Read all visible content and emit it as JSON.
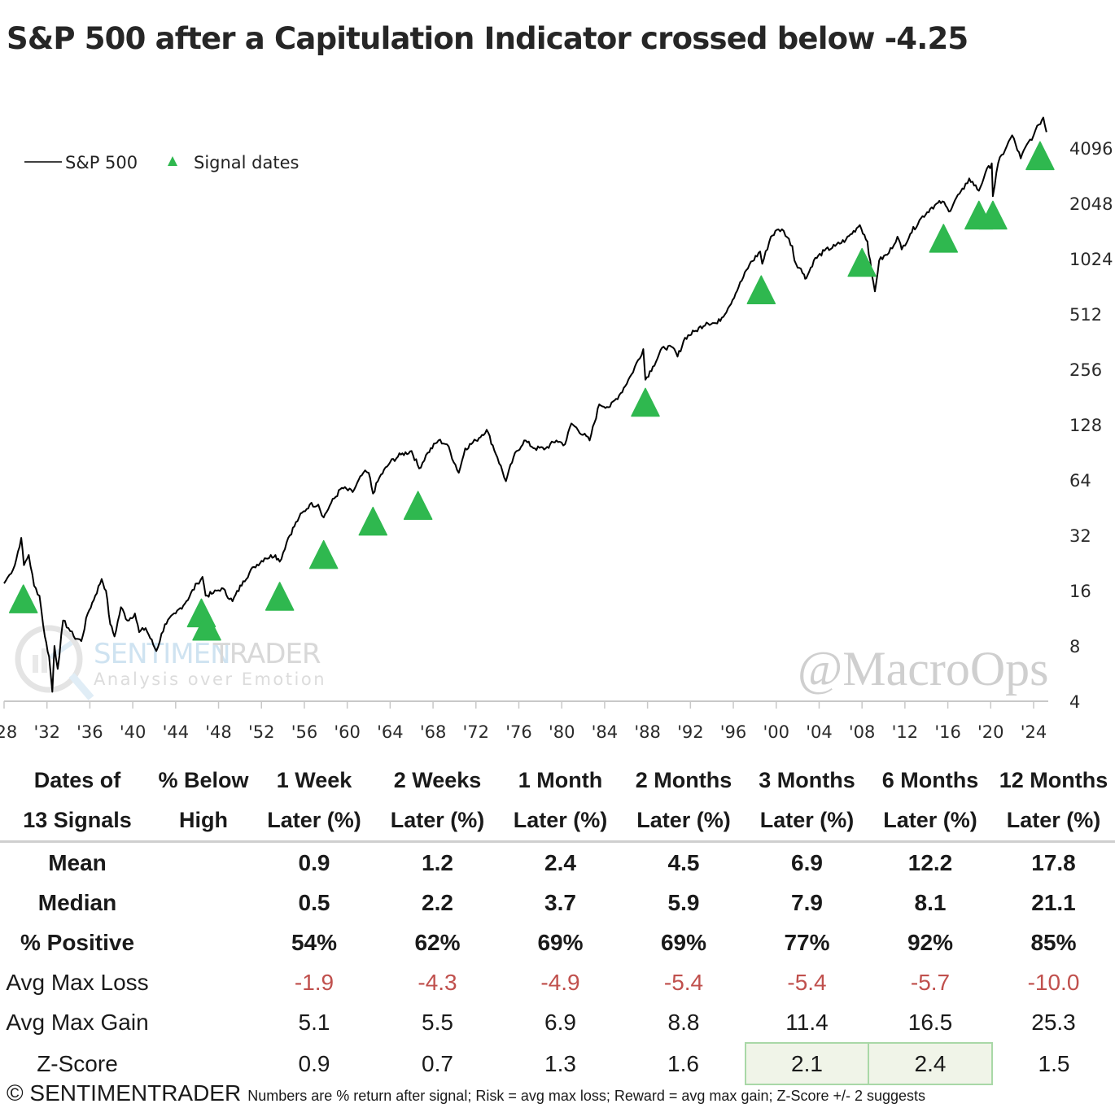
{
  "title": "S&P 500 after a Capitulation Indicator crossed below -4.25",
  "chart_data": {
    "type": "line",
    "title": "S&P 500 after a Capitulation Indicator crossed below -4.25",
    "xlabel": "",
    "ylabel": "",
    "y_scale": "log2",
    "ylim": [
      4,
      6000
    ],
    "xlim": [
      1928,
      2025
    ],
    "y_ticks": [
      "4096",
      "2048",
      "1024",
      "512",
      "256",
      "128",
      "64",
      "32",
      "16",
      "8",
      "4"
    ],
    "y_tick_values": [
      4096,
      2048,
      1024,
      512,
      256,
      128,
      64,
      32,
      16,
      8,
      4
    ],
    "y_axis_position": "right",
    "x_ticks": [
      "'28",
      "'32",
      "'36",
      "'40",
      "'44",
      "'48",
      "'52",
      "'56",
      "'60",
      "'64",
      "'68",
      "'72",
      "'76",
      "'80",
      "'84",
      "'88",
      "'92",
      "'96",
      "'00",
      "'04",
      "'08",
      "'12",
      "'16",
      "'20",
      "'24"
    ],
    "x_tick_values": [
      1928,
      1932,
      1936,
      1940,
      1944,
      1948,
      1952,
      1956,
      1960,
      1964,
      1968,
      1972,
      1976,
      1980,
      1984,
      1988,
      1992,
      1996,
      2000,
      2004,
      2008,
      2012,
      2016,
      2020,
      2024
    ],
    "grid": false,
    "legend": {
      "position": "top-left",
      "entries": [
        {
          "label": "S&P 500",
          "marker": "line",
          "color": "#000000"
        },
        {
          "label": "Signal dates",
          "marker": "triangle-up",
          "color": "#2fb84f"
        }
      ]
    },
    "series": [
      {
        "name": "S&P 500",
        "color": "#000000",
        "points": [
          [
            1928.0,
            17.5
          ],
          [
            1928.5,
            19.5
          ],
          [
            1929.0,
            22
          ],
          [
            1929.6,
            31
          ],
          [
            1929.85,
            22
          ],
          [
            1930.3,
            25
          ],
          [
            1930.8,
            17
          ],
          [
            1931.3,
            15
          ],
          [
            1931.8,
            9
          ],
          [
            1932.2,
            7
          ],
          [
            1932.5,
            4.5
          ],
          [
            1932.7,
            8
          ],
          [
            1933.0,
            6
          ],
          [
            1933.5,
            11
          ],
          [
            1934.0,
            10
          ],
          [
            1934.5,
            9
          ],
          [
            1935.2,
            8.5
          ],
          [
            1935.8,
            12
          ],
          [
            1936.5,
            15
          ],
          [
            1937.1,
            18.5
          ],
          [
            1937.5,
            16
          ],
          [
            1937.9,
            10.5
          ],
          [
            1938.3,
            9
          ],
          [
            1938.9,
            13
          ],
          [
            1939.5,
            11
          ],
          [
            1940.2,
            12
          ],
          [
            1940.6,
            9.5
          ],
          [
            1941.2,
            10
          ],
          [
            1942.2,
            7.5
          ],
          [
            1943.0,
            10.5
          ],
          [
            1944.0,
            12
          ],
          [
            1945.0,
            14
          ],
          [
            1946.0,
            17.5
          ],
          [
            1946.5,
            19
          ],
          [
            1946.8,
            15
          ],
          [
            1947.5,
            15.5
          ],
          [
            1948.3,
            16.5
          ],
          [
            1949.3,
            14
          ],
          [
            1950.3,
            18
          ],
          [
            1951.3,
            21.5
          ],
          [
            1952.3,
            24
          ],
          [
            1953.3,
            25
          ],
          [
            1953.7,
            23
          ],
          [
            1954.5,
            31
          ],
          [
            1955.5,
            40
          ],
          [
            1956.5,
            47
          ],
          [
            1957.3,
            47
          ],
          [
            1957.8,
            40
          ],
          [
            1958.5,
            48
          ],
          [
            1959.5,
            58
          ],
          [
            1960.5,
            55
          ],
          [
            1961.5,
            70
          ],
          [
            1962.0,
            70
          ],
          [
            1962.4,
            54
          ],
          [
            1963.0,
            66
          ],
          [
            1964.0,
            80
          ],
          [
            1965.0,
            88
          ],
          [
            1966.0,
            92
          ],
          [
            1966.7,
            74
          ],
          [
            1967.5,
            90
          ],
          [
            1968.5,
            105
          ],
          [
            1969.3,
            100
          ],
          [
            1970.4,
            70
          ],
          [
            1971.0,
            95
          ],
          [
            1972.0,
            105
          ],
          [
            1973.0,
            120
          ],
          [
            1974.0,
            85
          ],
          [
            1974.8,
            63
          ],
          [
            1975.5,
            85
          ],
          [
            1976.5,
            105
          ],
          [
            1977.5,
            95
          ],
          [
            1978.5,
            95
          ],
          [
            1979.5,
            105
          ],
          [
            1980.3,
            100
          ],
          [
            1980.9,
            130
          ],
          [
            1982.6,
            105
          ],
          [
            1983.5,
            165
          ],
          [
            1984.5,
            160
          ],
          [
            1985.5,
            190
          ],
          [
            1986.5,
            240
          ],
          [
            1987.6,
            330
          ],
          [
            1987.8,
            225
          ],
          [
            1988.5,
            265
          ],
          [
            1989.5,
            340
          ],
          [
            1990.5,
            330
          ],
          [
            1990.8,
            300
          ],
          [
            1991.5,
            380
          ],
          [
            1992.5,
            415
          ],
          [
            1993.5,
            460
          ],
          [
            1994.5,
            455
          ],
          [
            1995.5,
            550
          ],
          [
            1996.5,
            720
          ],
          [
            1997.5,
            950
          ],
          [
            1998.5,
            1120
          ],
          [
            1998.7,
            960
          ],
          [
            1999.5,
            1350
          ],
          [
            2000.2,
            1480
          ],
          [
            2000.7,
            1450
          ],
          [
            2001.5,
            1200
          ],
          [
            2001.7,
            1000
          ],
          [
            2002.6,
            840
          ],
          [
            2002.8,
            800
          ],
          [
            2003.5,
            1000
          ],
          [
            2004.5,
            1130
          ],
          [
            2005.5,
            1200
          ],
          [
            2006.5,
            1300
          ],
          [
            2007.5,
            1500
          ],
          [
            2007.8,
            1560
          ],
          [
            2008.5,
            1270
          ],
          [
            2008.9,
            850
          ],
          [
            2009.2,
            680
          ],
          [
            2009.6,
            1000
          ],
          [
            2010.5,
            1100
          ],
          [
            2011.3,
            1350
          ],
          [
            2011.7,
            1150
          ],
          [
            2012.5,
            1400
          ],
          [
            2013.5,
            1700
          ],
          [
            2014.5,
            1950
          ],
          [
            2015.5,
            2100
          ],
          [
            2016.1,
            1850
          ],
          [
            2016.8,
            2200
          ],
          [
            2017.5,
            2450
          ],
          [
            2018.0,
            2800
          ],
          [
            2018.9,
            2400
          ],
          [
            2019.5,
            3000
          ],
          [
            2020.1,
            3380
          ],
          [
            2020.2,
            2240
          ],
          [
            2020.7,
            3400
          ],
          [
            2021.5,
            4200
          ],
          [
            2022.0,
            4800
          ],
          [
            2022.8,
            3600
          ],
          [
            2023.5,
            4400
          ],
          [
            2024.0,
            4800
          ],
          [
            2024.5,
            5500
          ],
          [
            2024.9,
            6000
          ],
          [
            2025.2,
            5000
          ]
        ]
      }
    ],
    "signals": {
      "name": "Signal dates",
      "color": "#2fb84f",
      "points": [
        [
          1929.8,
          15.5
        ],
        [
          1946.4,
          13
        ],
        [
          1946.9,
          11
        ],
        [
          1953.7,
          16
        ],
        [
          1957.8,
          27
        ],
        [
          1962.4,
          41
        ],
        [
          1966.6,
          50
        ],
        [
          1987.8,
          182
        ],
        [
          1998.6,
          745
        ],
        [
          2008.0,
          1050
        ],
        [
          2015.6,
          1420
        ],
        [
          2018.9,
          1900
        ],
        [
          2020.2,
          1900
        ],
        [
          2024.6,
          4000
        ]
      ]
    },
    "watermarks": [
      "SENTIMENTRADER",
      "Analysis over Emotion",
      "@MacroOps"
    ]
  },
  "table": {
    "header_row1": [
      "Dates of",
      "% Below",
      "1 Week",
      "2 Weeks",
      "1 Month",
      "2 Months",
      "3 Months",
      "6 Months",
      "12 Months"
    ],
    "header_row2": [
      "13 Signals",
      "High",
      "Later (%)",
      "Later (%)",
      "Later (%)",
      "Later (%)",
      "Later (%)",
      "Later (%)",
      "Later (%)"
    ],
    "rows": [
      {
        "label": "Mean",
        "values": [
          "",
          "0.9",
          "1.2",
          "2.4",
          "4.5",
          "6.9",
          "12.2",
          "17.8"
        ]
      },
      {
        "label": "Median",
        "values": [
          "",
          "0.5",
          "2.2",
          "3.7",
          "5.9",
          "7.9",
          "8.1",
          "21.1"
        ]
      },
      {
        "label": "% Positive",
        "values": [
          "",
          "54%",
          "62%",
          "69%",
          "69%",
          "77%",
          "92%",
          "85%"
        ]
      },
      {
        "label": "Avg Max Loss",
        "values": [
          "",
          "-1.9",
          "-4.3",
          "-4.9",
          "-5.4",
          "-5.4",
          "-5.7",
          "-10.0"
        ]
      },
      {
        "label": "Avg Max Gain",
        "values": [
          "",
          "5.1",
          "5.5",
          "6.9",
          "8.8",
          "11.4",
          "16.5",
          "25.3"
        ]
      },
      {
        "label": "Z-Score",
        "values": [
          "",
          "0.9",
          "0.7",
          "1.3",
          "1.6",
          "2.1",
          "2.4",
          "1.5"
        ]
      }
    ],
    "highlighted_cells": [
      "Z-Score / 3 Months",
      "Z-Score / 6 Months"
    ]
  },
  "colors": {
    "signal_green": "#2fb84f",
    "loss_red": "#c0504d",
    "highlight_fill": "#f0f4e8",
    "highlight_border": "#a9d8a7"
  },
  "footer": {
    "brand": "© SENTIMENTRADER",
    "note": "Numbers are % return after signal; Risk = avg max loss; Reward = avg max gain; Z-Score +/- 2 suggests"
  }
}
